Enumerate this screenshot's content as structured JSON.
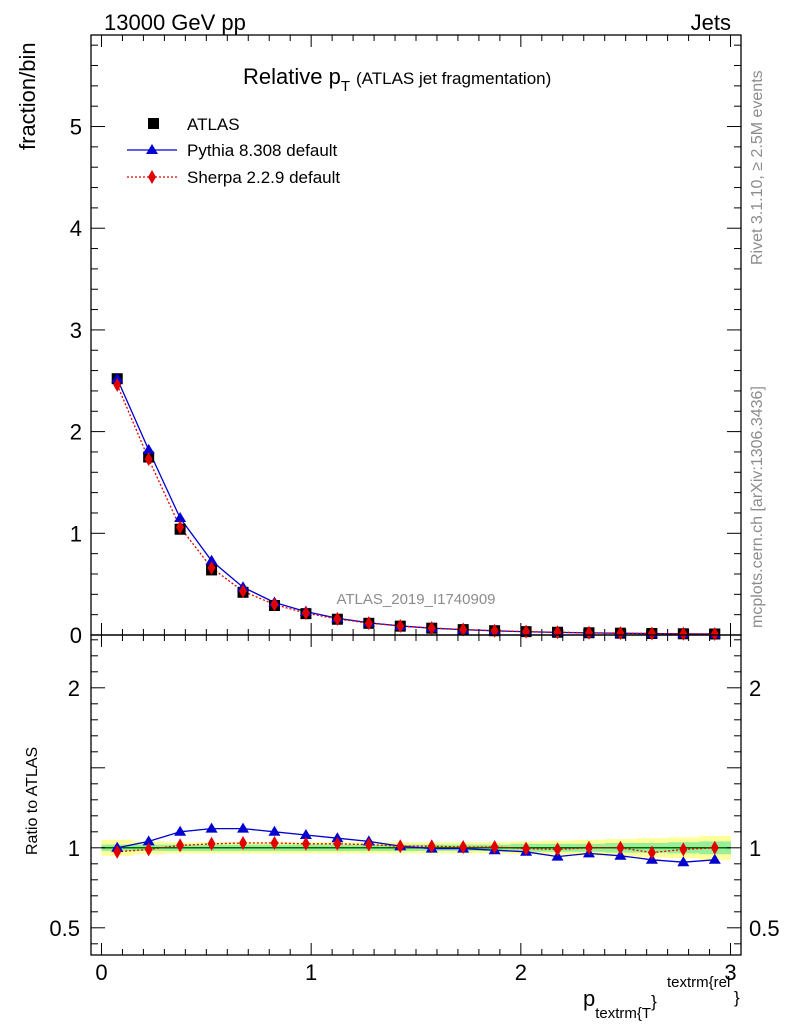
{
  "header": {
    "left": "13000 GeV pp",
    "right": "Jets"
  },
  "side_labels": {
    "rivet": "Rivet 3.1.10, ≥ 2.5M events",
    "mcplots": "mcplots.cern.ch [arXiv:1306.3436]"
  },
  "watermark": "ATLAS_2019_I1740909",
  "chart_data": [
    {
      "type": "scatter",
      "title_main": "Relative p",
      "title_sub": "T",
      "title_rest": "(ATLAS jet fragmentation)",
      "ylabel": "fraction/bin",
      "xlabel_main": "p",
      "xlabel_sub": "textrm{T",
      "xlabel_brace": "}",
      "xlabel_sup": "textrm{rel",
      "xlabel_end": "}",
      "xlim": [
        -0.05,
        3.05
      ],
      "ylim": [
        0,
        5.9
      ],
      "xticks": [
        0,
        1,
        2,
        3
      ],
      "xtick_labels": [
        "0",
        "1",
        "2",
        "3"
      ],
      "yticks": [
        0,
        1,
        2,
        3,
        4,
        5
      ],
      "ytick_labels": [
        "0",
        "1",
        "2",
        "3",
        "4",
        "5"
      ],
      "legend_position": "top-left",
      "x": [
        0.075,
        0.225,
        0.375,
        0.525,
        0.675,
        0.825,
        0.975,
        1.125,
        1.275,
        1.425,
        1.575,
        1.725,
        1.875,
        2.025,
        2.175,
        2.325,
        2.475,
        2.625,
        2.775,
        2.925
      ],
      "series": [
        {
          "name": "ATLAS",
          "color": "#000000",
          "marker": "square",
          "values": [
            2.52,
            1.75,
            1.04,
            0.64,
            0.42,
            0.29,
            0.21,
            0.155,
            0.115,
            0.087,
            0.067,
            0.053,
            0.042,
            0.033,
            0.027,
            0.022,
            0.018,
            0.015,
            0.012,
            0.01
          ]
        },
        {
          "name": "Pythia 8.308 default",
          "color": "#0000d0",
          "marker": "triangle",
          "values": [
            2.52,
            1.82,
            1.15,
            0.73,
            0.47,
            0.32,
            0.23,
            0.165,
            0.12,
            0.089,
            0.067,
            0.053,
            0.041,
            0.032,
            0.026,
            0.021,
            0.017,
            0.014,
            0.011,
            0.009
          ]
        },
        {
          "name": "Sherpa 2.2.9 default",
          "color": "#e00000",
          "marker": "diamond",
          "values": [
            2.46,
            1.73,
            1.06,
            0.66,
            0.43,
            0.3,
            0.215,
            0.158,
            0.117,
            0.088,
            0.068,
            0.054,
            0.042,
            0.033,
            0.027,
            0.022,
            0.018,
            0.0145,
            0.012,
            0.01
          ]
        }
      ]
    },
    {
      "type": "scatter",
      "ylabel": "Ratio to ATLAS",
      "xlim": [
        -0.05,
        3.05
      ],
      "ylim": [
        0.33,
        2.33
      ],
      "xticks": [
        0,
        1,
        2,
        3
      ],
      "xtick_labels": [
        "0",
        "1",
        "2",
        "3"
      ],
      "yticks": [
        0.5,
        1,
        2
      ],
      "ytick_labels": [
        "0.5",
        "1",
        "2"
      ],
      "reference": 1,
      "band_inner": [
        0.02,
        0.02,
        0.02,
        0.02,
        0.02,
        0.02,
        0.02,
        0.02,
        0.02,
        0.02,
        0.02,
        0.02,
        0.02,
        0.025,
        0.025,
        0.025,
        0.03,
        0.03,
        0.035,
        0.04
      ],
      "band_outer": [
        0.05,
        0.04,
        0.035,
        0.035,
        0.035,
        0.035,
        0.035,
        0.035,
        0.035,
        0.035,
        0.035,
        0.035,
        0.035,
        0.04,
        0.045,
        0.05,
        0.055,
        0.06,
        0.065,
        0.075
      ],
      "x": [
        0.075,
        0.225,
        0.375,
        0.525,
        0.675,
        0.825,
        0.975,
        1.125,
        1.275,
        1.425,
        1.575,
        1.725,
        1.875,
        2.025,
        2.175,
        2.325,
        2.475,
        2.625,
        2.775,
        2.925
      ],
      "series": [
        {
          "name": "Pythia 8.308 default",
          "color": "#0000d0",
          "marker": "triangle",
          "values": [
            1.0,
            1.04,
            1.1,
            1.12,
            1.12,
            1.1,
            1.08,
            1.06,
            1.04,
            1.01,
            0.995,
            0.995,
            0.985,
            0.975,
            0.945,
            0.965,
            0.95,
            0.925,
            0.91,
            0.925
          ]
        },
        {
          "name": "Sherpa 2.2.9 default",
          "color": "#e00000",
          "marker": "diamond",
          "values": [
            0.975,
            0.99,
            1.015,
            1.025,
            1.03,
            1.03,
            1.025,
            1.025,
            1.02,
            1.01,
            1.01,
            1.005,
            1.005,
            0.995,
            0.99,
            1.0,
            1.0,
            0.97,
            0.99,
            1.0
          ]
        }
      ]
    }
  ]
}
